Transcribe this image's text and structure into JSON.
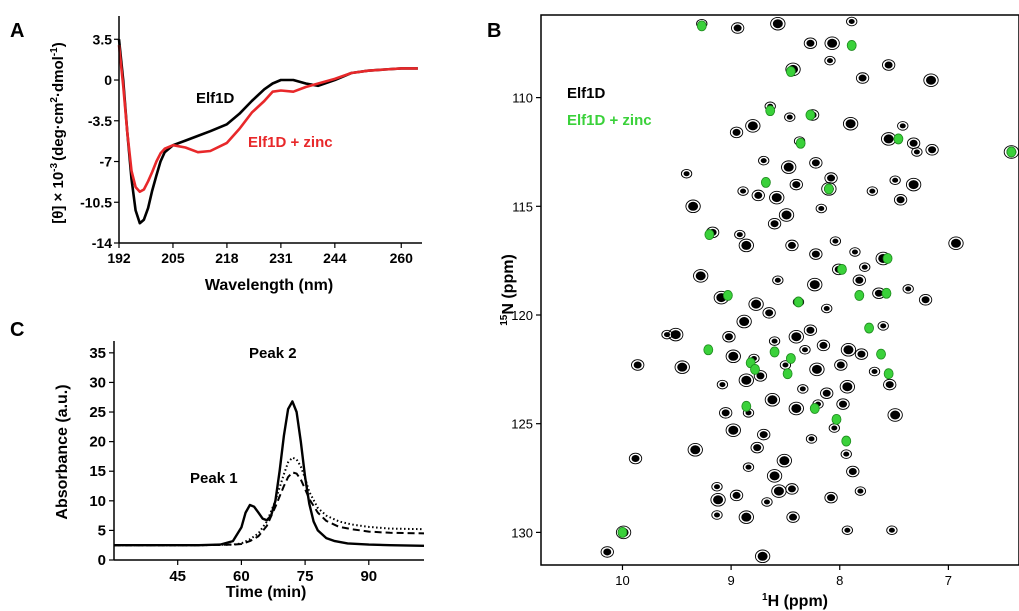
{
  "chart_data": [
    {
      "panel": "A",
      "type": "line",
      "xlabel": "Wavelength (nm)",
      "ylabel": "[θ] × 10",
      "ylabel_sup": "-3",
      "ylabel_units": "(deg·cm",
      "ylabel_units_sup": "2",
      "ylabel_units_mid": "·dmol",
      "ylabel_units_sup2": "-1",
      "ylabel_units_end": ")",
      "xlim": [
        192,
        265
      ],
      "ylim": [
        -14,
        5.5
      ],
      "xticks": [
        192,
        205,
        218,
        231,
        244,
        260
      ],
      "yticks": [
        3.5,
        0,
        -3.5,
        -7,
        -10.5,
        -14
      ],
      "series": [
        {
          "name": "Elf1D",
          "color": "#000000",
          "x": [
            192,
            193,
            194,
            195,
            196,
            197,
            198,
            199,
            200,
            201,
            202,
            203,
            205,
            208,
            211,
            214,
            218,
            221,
            224,
            227,
            229,
            231,
            234,
            237,
            240,
            244,
            248,
            252,
            256,
            260,
            264
          ],
          "y": [
            3.5,
            0,
            -4.5,
            -8.5,
            -11.2,
            -12.3,
            -12.0,
            -11.0,
            -9.5,
            -8.2,
            -7.0,
            -6.2,
            -5.6,
            -5.2,
            -4.8,
            -4.4,
            -3.8,
            -2.9,
            -1.8,
            -0.8,
            -0.3,
            0.0,
            0.0,
            -0.3,
            -0.5,
            0.0,
            0.6,
            0.8,
            0.9,
            1.0,
            1.0
          ]
        },
        {
          "name": "Elf1D + zinc",
          "color": "#e8282a",
          "x": [
            192,
            193,
            194,
            195,
            196,
            197,
            198,
            199,
            200,
            201,
            202,
            203,
            205,
            208,
            211,
            214,
            218,
            221,
            224,
            227,
            229,
            231,
            234,
            237,
            240,
            244,
            248,
            252,
            256,
            260,
            264
          ],
          "y": [
            3.0,
            -0.5,
            -4.5,
            -7.8,
            -9.2,
            -9.6,
            -9.4,
            -8.7,
            -7.9,
            -7.0,
            -6.3,
            -5.9,
            -5.6,
            -5.8,
            -6.2,
            -6.1,
            -5.4,
            -4.2,
            -2.8,
            -1.8,
            -1.0,
            -0.9,
            -1.0,
            -0.6,
            -0.3,
            0.1,
            0.6,
            0.8,
            0.9,
            1.0,
            1.0
          ]
        }
      ]
    },
    {
      "panel": "C",
      "type": "line",
      "xlabel": "Time (min)",
      "ylabel": "Absorbance (a.u.)",
      "xlim": [
        30,
        103
      ],
      "ylim": [
        0,
        37
      ],
      "xticks": [
        45,
        60,
        75,
        90
      ],
      "yticks": [
        0,
        5,
        10,
        15,
        20,
        25,
        30,
        35
      ],
      "annotations": [
        "Peak 1",
        "Peak 2"
      ],
      "series": [
        {
          "style": "solid",
          "x": [
            30,
            40,
            50,
            55,
            58,
            60,
            61,
            62,
            63,
            64,
            65,
            66,
            67,
            68,
            69,
            70,
            71,
            72,
            73,
            74,
            75,
            76,
            77,
            78,
            80,
            82,
            85,
            90,
            95,
            103
          ],
          "y": [
            2.5,
            2.5,
            2.5,
            2.6,
            3.2,
            5.5,
            8.0,
            9.3,
            9.0,
            8.0,
            7.0,
            6.7,
            7.5,
            10.0,
            15.0,
            21.0,
            25.5,
            26.8,
            25.0,
            20.0,
            14.0,
            9.5,
            6.5,
            5.0,
            3.7,
            3.2,
            2.8,
            2.6,
            2.5,
            2.4
          ]
        },
        {
          "style": "dotted",
          "x": [
            30,
            50,
            58,
            60,
            62,
            64,
            66,
            68,
            70,
            71,
            72,
            73,
            74,
            75,
            76,
            78,
            80,
            83,
            86,
            90,
            95,
            103
          ],
          "y": [
            2.5,
            2.5,
            2.6,
            2.8,
            3.5,
            4.5,
            6.5,
            10.0,
            14.5,
            16.5,
            17.3,
            17.0,
            15.8,
            13.8,
            11.5,
            8.8,
            7.5,
            6.5,
            6.0,
            5.6,
            5.3,
            5.2
          ]
        },
        {
          "style": "dashed",
          "x": [
            30,
            50,
            58,
            60,
            62,
            64,
            66,
            68,
            70,
            71,
            72,
            73,
            74,
            75,
            76,
            78,
            80,
            83,
            86,
            90,
            95,
            103
          ],
          "y": [
            2.5,
            2.5,
            2.6,
            2.7,
            3.2,
            4.0,
            5.8,
            9.0,
            12.5,
            14.0,
            14.8,
            14.6,
            13.6,
            12.0,
            10.3,
            8.0,
            6.6,
            5.6,
            5.2,
            4.8,
            4.6,
            4.5
          ]
        }
      ]
    },
    {
      "panel": "B",
      "type": "scatter",
      "xlabel_sup": "1",
      "xlabel": "H (ppm)",
      "ylabel_sup": "15",
      "ylabel": "N (ppm)",
      "xlim": [
        10.75,
        6.35
      ],
      "ylim": [
        131.5,
        106.2
      ],
      "xticks": [
        10,
        9,
        8,
        7
      ],
      "yticks": [
        110,
        115,
        120,
        125,
        130
      ],
      "legend": [
        {
          "name": "Elf1D",
          "color": "#000000"
        },
        {
          "name": "Elf1D + zinc",
          "color": "#3ad13a"
        }
      ],
      "series": [
        {
          "name": "Elf1D",
          "color": "#000000",
          "points": [
            [
              9.27,
              106.6
            ],
            [
              8.94,
              106.8
            ],
            [
              8.57,
              106.6
            ],
            [
              7.89,
              106.5
            ],
            [
              8.27,
              107.5
            ],
            [
              8.07,
              107.5
            ],
            [
              8.09,
              108.3
            ],
            [
              7.55,
              108.5
            ],
            [
              8.43,
              108.7
            ],
            [
              8.46,
              110.9
            ],
            [
              7.79,
              109.1
            ],
            [
              7.16,
              109.2
            ],
            [
              8.64,
              110.4
            ],
            [
              8.25,
              110.8
            ],
            [
              7.9,
              111.2
            ],
            [
              7.42,
              111.3
            ],
            [
              8.95,
              111.6
            ],
            [
              8.8,
              111.3
            ],
            [
              8.37,
              112.0
            ],
            [
              7.32,
              112.1
            ],
            [
              7.55,
              111.9
            ],
            [
              7.29,
              112.5
            ],
            [
              7.15,
              112.4
            ],
            [
              6.42,
              112.5
            ],
            [
              8.7,
              112.9
            ],
            [
              8.22,
              113.0
            ],
            [
              8.47,
              113.2
            ],
            [
              9.41,
              113.5
            ],
            [
              8.08,
              113.7
            ],
            [
              7.32,
              114.0
            ],
            [
              7.49,
              113.8
            ],
            [
              8.4,
              114.0
            ],
            [
              8.1,
              114.2
            ],
            [
              7.7,
              114.3
            ],
            [
              8.75,
              114.5
            ],
            [
              8.58,
              114.6
            ],
            [
              8.89,
              114.3
            ],
            [
              7.44,
              114.7
            ],
            [
              9.35,
              115.0
            ],
            [
              8.17,
              115.1
            ],
            [
              8.6,
              115.8
            ],
            [
              8.49,
              115.4
            ],
            [
              8.92,
              116.3
            ],
            [
              9.17,
              116.2
            ],
            [
              6.93,
              116.7
            ],
            [
              8.04,
              116.6
            ],
            [
              8.44,
              116.8
            ],
            [
              8.86,
              116.8
            ],
            [
              7.86,
              117.1
            ],
            [
              8.22,
              117.2
            ],
            [
              7.6,
              117.4
            ],
            [
              7.77,
              117.8
            ],
            [
              8.01,
              117.9
            ],
            [
              9.28,
              118.2
            ],
            [
              8.57,
              118.4
            ],
            [
              7.82,
              118.4
            ],
            [
              8.23,
              118.6
            ],
            [
              7.37,
              118.8
            ],
            [
              7.64,
              119.0
            ],
            [
              9.09,
              119.2
            ],
            [
              8.38,
              119.4
            ],
            [
              7.21,
              119.3
            ],
            [
              8.77,
              119.5
            ],
            [
              8.12,
              119.7
            ],
            [
              8.65,
              119.9
            ],
            [
              8.88,
              120.3
            ],
            [
              7.6,
              120.5
            ],
            [
              8.27,
              120.7
            ],
            [
              9.51,
              120.9
            ],
            [
              9.59,
              120.9
            ],
            [
              9.02,
              121.0
            ],
            [
              8.4,
              121.0
            ],
            [
              8.6,
              121.2
            ],
            [
              8.15,
              121.4
            ],
            [
              7.92,
              121.6
            ],
            [
              8.32,
              121.6
            ],
            [
              7.8,
              121.8
            ],
            [
              8.98,
              121.9
            ],
            [
              8.79,
              122.0
            ],
            [
              9.86,
              122.3
            ],
            [
              9.45,
              122.4
            ],
            [
              8.5,
              122.3
            ],
            [
              7.99,
              122.3
            ],
            [
              8.21,
              122.5
            ],
            [
              7.68,
              122.6
            ],
            [
              8.73,
              122.8
            ],
            [
              8.86,
              123.0
            ],
            [
              9.08,
              123.2
            ],
            [
              7.54,
              123.2
            ],
            [
              7.93,
              123.3
            ],
            [
              8.34,
              123.4
            ],
            [
              8.12,
              123.6
            ],
            [
              8.62,
              123.9
            ],
            [
              8.2,
              124.1
            ],
            [
              7.97,
              124.1
            ],
            [
              8.4,
              124.3
            ],
            [
              8.84,
              124.5
            ],
            [
              9.05,
              124.5
            ],
            [
              7.49,
              124.6
            ],
            [
              8.05,
              125.2
            ],
            [
              8.7,
              125.5
            ],
            [
              8.98,
              125.3
            ],
            [
              8.26,
              125.7
            ],
            [
              8.76,
              126.1
            ],
            [
              9.33,
              126.2
            ],
            [
              7.94,
              126.4
            ],
            [
              9.88,
              126.6
            ],
            [
              8.51,
              126.7
            ],
            [
              8.84,
              127.0
            ],
            [
              7.88,
              127.2
            ],
            [
              8.6,
              127.4
            ],
            [
              9.13,
              127.9
            ],
            [
              8.44,
              128.0
            ],
            [
              8.56,
              128.1
            ],
            [
              7.81,
              128.1
            ],
            [
              8.08,
              128.4
            ],
            [
              9.12,
              128.5
            ],
            [
              8.67,
              128.6
            ],
            [
              8.95,
              128.3
            ],
            [
              8.86,
              129.3
            ],
            [
              9.13,
              129.2
            ],
            [
              8.43,
              129.3
            ],
            [
              9.99,
              130.0
            ],
            [
              7.93,
              129.9
            ],
            [
              10.14,
              130.9
            ],
            [
              8.71,
              131.1
            ],
            [
              7.52,
              129.9
            ]
          ]
        },
        {
          "name": "Elf1D + zinc",
          "color": "#3ad13a",
          "points": [
            [
              9.27,
              106.7
            ],
            [
              7.89,
              107.6
            ],
            [
              8.45,
              108.8
            ],
            [
              8.27,
              110.8
            ],
            [
              8.64,
              110.6
            ],
            [
              8.36,
              112.1
            ],
            [
              7.46,
              111.9
            ],
            [
              6.42,
              112.5
            ],
            [
              8.68,
              113.9
            ],
            [
              8.1,
              114.2
            ],
            [
              9.2,
              116.3
            ],
            [
              7.56,
              117.4
            ],
            [
              7.98,
              117.9
            ],
            [
              9.03,
              119.1
            ],
            [
              7.82,
              119.1
            ],
            [
              7.57,
              119.0
            ],
            [
              8.38,
              119.4
            ],
            [
              7.73,
              120.6
            ],
            [
              9.21,
              121.6
            ],
            [
              8.6,
              121.7
            ],
            [
              7.62,
              121.8
            ],
            [
              8.45,
              122.0
            ],
            [
              8.82,
              122.2
            ],
            [
              8.48,
              122.7
            ],
            [
              8.78,
              122.5
            ],
            [
              7.55,
              122.7
            ],
            [
              8.86,
              124.2
            ],
            [
              8.23,
              124.3
            ],
            [
              8.03,
              124.8
            ],
            [
              7.94,
              125.8
            ],
            [
              10.0,
              130.0
            ]
          ]
        }
      ]
    }
  ],
  "panel_labels": {
    "a": "A",
    "b": "B",
    "c": "C"
  },
  "labels": {
    "a_elf1d": "Elf1D",
    "a_zinc": "Elf1D + zinc",
    "c_peak1": "Peak 1",
    "c_peak2": "Peak 2"
  }
}
